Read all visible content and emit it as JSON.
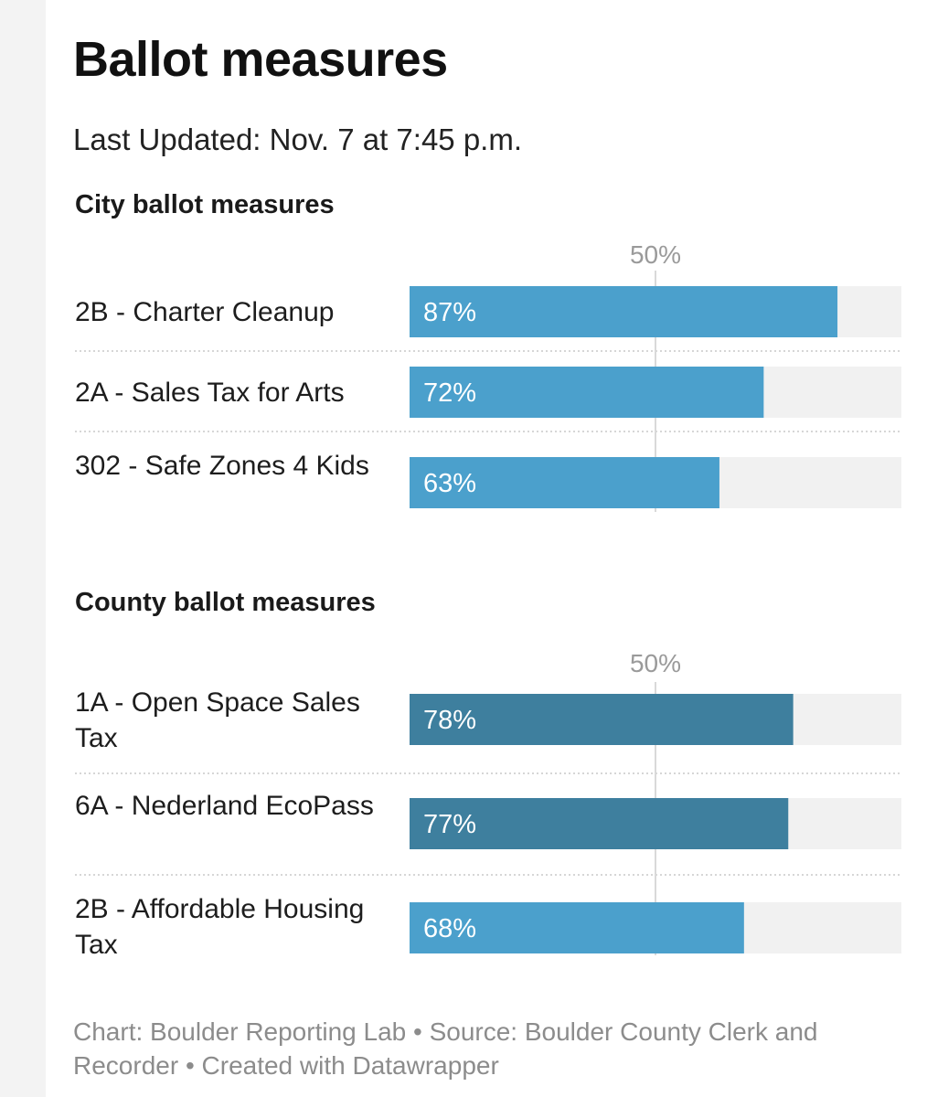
{
  "title": "Ballot measures",
  "updated": "Last Updated: Nov. 7 at 7:45 p.m.",
  "footer": "Chart: Boulder Reporting Lab • Source: Boulder County Clerk and Recorder • Created with Datawrapper",
  "colors": {
    "bar_light": "#4ba0cc",
    "bar_dark": "#3e7f9e",
    "track": "#f1f1f1",
    "reference_line": "#d9d9d9",
    "divider": "#c8c8c8",
    "value_text": "#ffffff"
  },
  "chart_data": [
    {
      "type": "bar",
      "orientation": "horizontal",
      "title": "City ballot measures",
      "reference_line": {
        "value": 50,
        "label": "50%"
      },
      "xlim": [
        0,
        100
      ],
      "categories": [
        "2B - Charter Cleanup",
        "2A - Sales Tax for Arts",
        "302 - Safe Zones 4 Kids"
      ],
      "values": [
        87,
        72,
        63
      ],
      "value_labels": [
        "87%",
        "72%",
        "63%"
      ],
      "bar_colors": [
        "#4ba0cc",
        "#4ba0cc",
        "#4ba0cc"
      ]
    },
    {
      "type": "bar",
      "orientation": "horizontal",
      "title": "County ballot measures",
      "reference_line": {
        "value": 50,
        "label": "50%"
      },
      "xlim": [
        0,
        100
      ],
      "categories": [
        "1A - Open Space Sales Tax",
        "6A - Nederland EcoPass",
        "2B - Affordable Housing Tax"
      ],
      "values": [
        78,
        77,
        68
      ],
      "value_labels": [
        "78%",
        "77%",
        "68%"
      ],
      "bar_colors": [
        "#3e7f9e",
        "#3e7f9e",
        "#4ba0cc"
      ]
    }
  ]
}
